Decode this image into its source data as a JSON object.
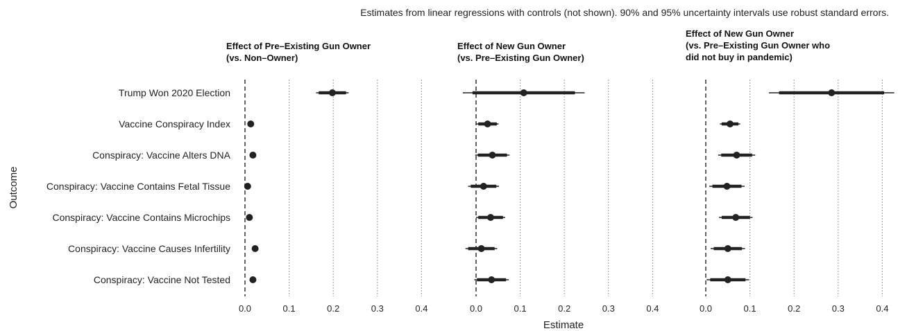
{
  "subtitle": "Estimates from linear regressions with controls (not shown). 90% and 95% uncertainty intervals use robust standard errors.",
  "chart_data": {
    "type": "coefficient-plot",
    "xlabel": "Estimate",
    "ylabel": "Outcome",
    "xlim": [
      -0.02,
      0.43
    ],
    "xticks": [
      0.0,
      0.1,
      0.2,
      0.3,
      0.4
    ],
    "xtick_labels": [
      "0.0",
      "0.1",
      "0.2",
      "0.3",
      "0.4"
    ],
    "grid": "dotted vertical at ticks",
    "reference_line": 0,
    "categories": [
      "Trump Won 2020 Election",
      "Vaccine Conspiracy Index",
      "Conspiracy: Vaccine Alters DNA",
      "Conspiracy: Vaccine Contains Fetal Tissue",
      "Conspiracy: Vaccine Contains Microchips",
      "Conspiracy: Vaccine Causes Infertility",
      "Conspiracy: Vaccine Not Tested"
    ],
    "panels": [
      {
        "title_lines": [
          "Effect of Pre–Existing Gun Owner",
          "(vs. Non–Owner)"
        ],
        "estimates": [
          0.198,
          0.013,
          0.018,
          0.006,
          0.01,
          0.023,
          0.018
        ],
        "ci90": [
          [
            0.167,
            0.229
          ],
          [
            0.01,
            0.016
          ],
          [
            0.013,
            0.023
          ],
          [
            0.001,
            0.011
          ],
          [
            0.006,
            0.014
          ],
          [
            0.018,
            0.028
          ],
          [
            0.013,
            0.023
          ]
        ],
        "ci95": [
          [
            0.161,
            0.235
          ],
          [
            0.009,
            0.017
          ],
          [
            0.012,
            0.024
          ],
          [
            0.0,
            0.012
          ],
          [
            0.005,
            0.015
          ],
          [
            0.017,
            0.029
          ],
          [
            0.012,
            0.024
          ]
        ]
      },
      {
        "title_lines": [
          "Effect of New Gun Owner",
          "(vs. Pre–Existing Gun Owner)"
        ],
        "estimates": [
          0.108,
          0.026,
          0.037,
          0.017,
          0.033,
          0.012,
          0.035
        ],
        "ci90": [
          [
            -0.008,
            0.224
          ],
          [
            0.005,
            0.047
          ],
          [
            0.004,
            0.07
          ],
          [
            -0.012,
            0.046
          ],
          [
            0.005,
            0.061
          ],
          [
            -0.018,
            0.042
          ],
          [
            0.002,
            0.068
          ]
        ],
        "ci95": [
          [
            -0.03,
            0.246
          ],
          [
            0.001,
            0.051
          ],
          [
            -0.002,
            0.076
          ],
          [
            -0.018,
            0.052
          ],
          [
            0.0,
            0.066
          ],
          [
            -0.024,
            0.048
          ],
          [
            -0.004,
            0.074
          ]
        ]
      },
      {
        "title_lines": [
          "Effect of New Gun Owner",
          "(vs. Pre–Existing Gun Owner who",
          "did not buy in pandemic)"
        ],
        "estimates": [
          0.285,
          0.055,
          0.07,
          0.048,
          0.068,
          0.05,
          0.05
        ],
        "ci90": [
          [
            0.166,
            0.404
          ],
          [
            0.036,
            0.074
          ],
          [
            0.035,
            0.105
          ],
          [
            0.015,
            0.081
          ],
          [
            0.036,
            0.1
          ],
          [
            0.018,
            0.082
          ],
          [
            0.01,
            0.09
          ]
        ],
        "ci95": [
          [
            0.143,
            0.427
          ],
          [
            0.032,
            0.078
          ],
          [
            0.028,
            0.112
          ],
          [
            0.008,
            0.088
          ],
          [
            0.03,
            0.106
          ],
          [
            0.011,
            0.089
          ],
          [
            0.002,
            0.098
          ]
        ]
      }
    ]
  }
}
